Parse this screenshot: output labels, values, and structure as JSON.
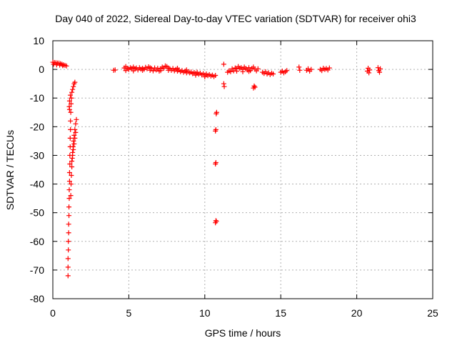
{
  "chart_data": {
    "type": "scatter",
    "title": "Day 040 of 2022, Sidereal Day-to-day VTEC variation (SDTVAR) for receiver ohi3",
    "xlabel": "GPS time / hours",
    "ylabel": "SDTVAR / TECUs",
    "xlim": [
      0,
      25
    ],
    "ylim": [
      -80,
      10
    ],
    "xticks": [
      0,
      5,
      10,
      15,
      20,
      25
    ],
    "yticks": [
      10,
      0,
      -10,
      -20,
      -30,
      -40,
      -50,
      -60,
      -70,
      -80
    ],
    "grid": true,
    "marker": "+",
    "series": [
      {
        "name": "SDTVAR",
        "color": "#ff0000",
        "points": [
          [
            0.0,
            2.5
          ],
          [
            0.1,
            2.4
          ],
          [
            0.2,
            2.3
          ],
          [
            0.3,
            2.2
          ],
          [
            0.4,
            2.2
          ],
          [
            0.5,
            2.0
          ],
          [
            0.6,
            1.8
          ],
          [
            0.7,
            1.6
          ],
          [
            0.8,
            1.4
          ],
          [
            0.9,
            1.2
          ],
          [
            0.05,
            1.8
          ],
          [
            0.25,
            1.6
          ],
          [
            0.45,
            1.5
          ],
          [
            0.65,
            1.3
          ],
          [
            1.0,
            -72
          ],
          [
            1.0,
            -69
          ],
          [
            1.0,
            -66
          ],
          [
            1.02,
            -63
          ],
          [
            1.02,
            -60
          ],
          [
            1.04,
            -57
          ],
          [
            1.04,
            -54
          ],
          [
            1.06,
            -51
          ],
          [
            1.06,
            -48
          ],
          [
            1.08,
            -45
          ],
          [
            1.08,
            -42
          ],
          [
            1.1,
            -39
          ],
          [
            1.1,
            -36
          ],
          [
            1.12,
            -33
          ],
          [
            1.12,
            -30
          ],
          [
            1.14,
            -27
          ],
          [
            1.14,
            -24
          ],
          [
            1.16,
            -21
          ],
          [
            1.16,
            -18
          ],
          [
            1.18,
            -15
          ],
          [
            1.2,
            -12
          ],
          [
            1.22,
            -10
          ],
          [
            1.25,
            -8
          ],
          [
            1.3,
            -7
          ],
          [
            1.35,
            -6
          ],
          [
            1.4,
            -5
          ],
          [
            1.45,
            -4.5
          ],
          [
            1.1,
            -14
          ],
          [
            1.08,
            -13
          ],
          [
            1.1,
            -11
          ],
          [
            1.15,
            -9
          ],
          [
            1.18,
            -44
          ],
          [
            1.2,
            -40
          ],
          [
            1.22,
            -37
          ],
          [
            1.25,
            -34
          ],
          [
            1.28,
            -31
          ],
          [
            1.3,
            -29
          ],
          [
            1.33,
            -27
          ],
          [
            1.36,
            -25
          ],
          [
            1.4,
            -23
          ],
          [
            1.45,
            -21
          ],
          [
            1.5,
            -19
          ],
          [
            1.55,
            -17.5
          ],
          [
            1.25,
            -32
          ],
          [
            1.3,
            -30
          ],
          [
            1.35,
            -28
          ],
          [
            1.4,
            -26
          ],
          [
            1.45,
            -24
          ],
          [
            1.5,
            -22
          ],
          [
            4.0,
            -0.3
          ],
          [
            4.1,
            -0.2
          ],
          [
            4.7,
            0.5
          ],
          [
            4.8,
            1.0
          ],
          [
            4.9,
            0.4
          ],
          [
            5.0,
            0.0
          ],
          [
            5.1,
            0.6
          ],
          [
            5.2,
            0.3
          ],
          [
            5.3,
            0.8
          ],
          [
            5.4,
            0.2
          ],
          [
            5.5,
            0.5
          ],
          [
            5.6,
            -0.2
          ],
          [
            5.7,
            0.6
          ],
          [
            5.8,
            0.1
          ],
          [
            5.9,
            0.4
          ],
          [
            6.0,
            0.0
          ],
          [
            6.1,
            0.7
          ],
          [
            6.2,
            0.2
          ],
          [
            6.3,
            0.9
          ],
          [
            6.4,
            -0.3
          ],
          [
            6.5,
            0.3
          ],
          [
            6.6,
            -0.5
          ],
          [
            6.7,
            0.5
          ],
          [
            6.8,
            -0.2
          ],
          [
            6.9,
            0.4
          ],
          [
            7.0,
            -0.6
          ],
          [
            7.1,
            0.2
          ],
          [
            7.2,
            0.8
          ],
          [
            7.3,
            0.4
          ],
          [
            7.4,
            1.2
          ],
          [
            7.5,
            1.0
          ],
          [
            7.6,
            0.5
          ],
          [
            7.7,
            0.2
          ],
          [
            7.8,
            -0.3
          ],
          [
            7.9,
            0.3
          ],
          [
            8.0,
            -0.5
          ],
          [
            8.1,
            0.0
          ],
          [
            8.2,
            -0.6
          ],
          [
            8.3,
            -0.2
          ],
          [
            8.4,
            -0.8
          ],
          [
            8.5,
            -0.4
          ],
          [
            8.6,
            -1.0
          ],
          [
            8.7,
            -0.6
          ],
          [
            8.8,
            -1.2
          ],
          [
            8.9,
            -0.8
          ],
          [
            9.0,
            -1.2
          ],
          [
            9.1,
            -0.9
          ],
          [
            9.2,
            -1.5
          ],
          [
            9.3,
            -1.1
          ],
          [
            9.4,
            -1.4
          ],
          [
            9.5,
            -1.0
          ],
          [
            9.6,
            -1.7
          ],
          [
            9.7,
            -1.3
          ],
          [
            9.8,
            -1.9
          ],
          [
            9.9,
            -1.5
          ],
          [
            10.0,
            -2.0
          ],
          [
            10.1,
            -1.6
          ],
          [
            10.2,
            -2.2
          ],
          [
            10.3,
            -1.8
          ],
          [
            10.4,
            -2.3
          ],
          [
            10.5,
            -2.0
          ],
          [
            10.6,
            -2.5
          ],
          [
            10.7,
            -2.1
          ],
          [
            4.8,
            -0.4
          ],
          [
            5.3,
            -0.5
          ],
          [
            5.9,
            -0.3
          ],
          [
            6.4,
            0.6
          ],
          [
            7.1,
            -0.4
          ],
          [
            7.6,
            -0.3
          ],
          [
            8.2,
            0.4
          ],
          [
            8.8,
            -0.2
          ],
          [
            9.4,
            -2.0
          ],
          [
            10.0,
            -2.6
          ],
          [
            10.75,
            -15.5
          ],
          [
            10.78,
            -15.0
          ],
          [
            10.7,
            -21.5
          ],
          [
            10.73,
            -21.0
          ],
          [
            10.7,
            -33.0
          ],
          [
            10.73,
            -32.5
          ],
          [
            10.7,
            -53.5
          ],
          [
            10.73,
            -52.8
          ],
          [
            10.76,
            -53.0
          ],
          [
            11.25,
            1.8
          ],
          [
            11.25,
            -5.0
          ],
          [
            11.28,
            -6.0
          ],
          [
            11.5,
            -1.0
          ],
          [
            11.6,
            -0.5
          ],
          [
            11.7,
            -0.8
          ],
          [
            11.8,
            0.2
          ],
          [
            11.9,
            -0.5
          ],
          [
            12.0,
            0.5
          ],
          [
            12.1,
            0.2
          ],
          [
            12.2,
            1.0
          ],
          [
            12.3,
            0.4
          ],
          [
            12.4,
            0.6
          ],
          [
            12.5,
            0.0
          ],
          [
            12.6,
            0.8
          ],
          [
            12.7,
            0.3
          ],
          [
            12.8,
            -0.2
          ],
          [
            12.9,
            0.6
          ],
          [
            13.0,
            -0.4
          ],
          [
            13.1,
            0.3
          ],
          [
            13.2,
            0.8
          ],
          [
            13.3,
            0.1
          ],
          [
            13.4,
            -0.5
          ],
          [
            13.5,
            0.2
          ],
          [
            12.1,
            -0.6
          ],
          [
            12.5,
            -0.8
          ],
          [
            12.9,
            -0.7
          ],
          [
            13.2,
            -6.5
          ],
          [
            13.25,
            -5.8
          ],
          [
            13.3,
            -6.2
          ],
          [
            13.8,
            -1.0
          ],
          [
            13.9,
            -1.4
          ],
          [
            14.0,
            -0.8
          ],
          [
            14.1,
            -1.6
          ],
          [
            14.2,
            -1.2
          ],
          [
            14.3,
            -1.8
          ],
          [
            14.4,
            -1.3
          ],
          [
            14.5,
            -1.6
          ],
          [
            15.0,
            -1.0
          ],
          [
            15.1,
            -0.6
          ],
          [
            15.2,
            -1.2
          ],
          [
            15.3,
            -0.8
          ],
          [
            15.4,
            -0.4
          ],
          [
            16.2,
            0.8
          ],
          [
            16.25,
            -0.3
          ],
          [
            16.7,
            -0.3
          ],
          [
            16.8,
            0.2
          ],
          [
            16.9,
            -0.6
          ],
          [
            17.0,
            0.0
          ],
          [
            17.6,
            0.0
          ],
          [
            17.7,
            -0.4
          ],
          [
            17.8,
            0.4
          ],
          [
            17.9,
            0.0
          ],
          [
            18.0,
            0.3
          ],
          [
            18.1,
            -0.2
          ],
          [
            18.2,
            0.5
          ],
          [
            20.7,
            -0.6
          ],
          [
            20.75,
            0.4
          ],
          [
            20.8,
            -1.2
          ],
          [
            20.85,
            -0.2
          ],
          [
            21.4,
            0.6
          ],
          [
            21.45,
            -0.4
          ],
          [
            21.5,
            -1.0
          ],
          [
            21.55,
            0.2
          ]
        ]
      }
    ]
  }
}
